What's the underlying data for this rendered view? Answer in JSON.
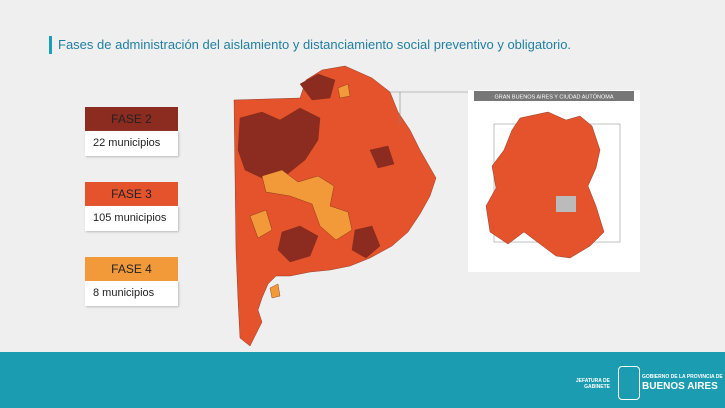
{
  "header": {
    "title": "Fases de administración del aislamiento y distanciamiento social preventivo y obligatorio."
  },
  "legend": [
    {
      "label": "FASE 2",
      "count": "22 municipios",
      "color": "#8c2b1f"
    },
    {
      "label": "FASE 3",
      "count": "105 municipios",
      "color": "#e4532c"
    },
    {
      "label": "FASE 4",
      "count": "8 municipios",
      "color": "#f29a3a"
    }
  ],
  "inset": {
    "title": "GRAN BUENOS AIRES Y CIUDAD AUTÓNOMA"
  },
  "footer": {
    "left_logo": "JEFATURA DE GABINETE",
    "right_logo_top": "GOBIERNO DE LA PROVINCIA DE",
    "right_logo": "BUENOS AIRES"
  }
}
